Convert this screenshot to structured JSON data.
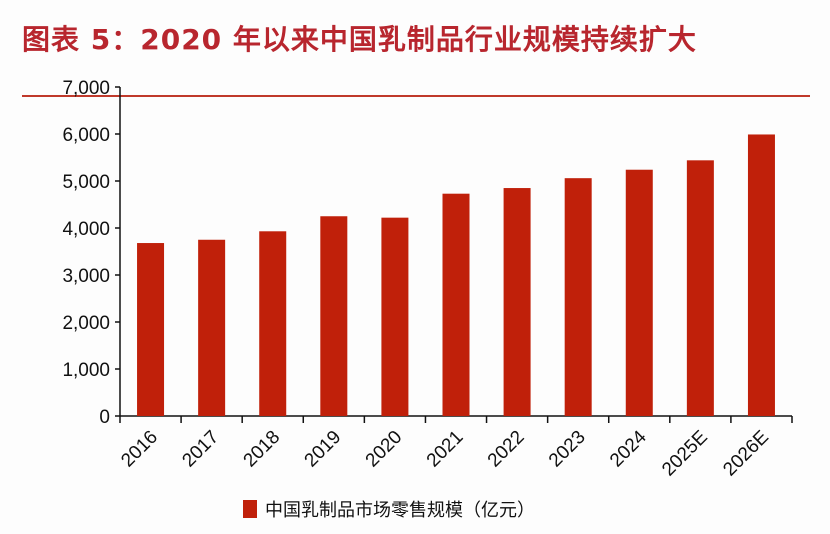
{
  "chart_data": {
    "type": "bar",
    "title": "图表 5：2020 年以来中国乳制品行业规模持续扩大",
    "categories": [
      "2016",
      "2017",
      "2018",
      "2019",
      "2020",
      "2021",
      "2022",
      "2023",
      "2024",
      "2025E",
      "2026E"
    ],
    "series": [
      {
        "name": "中国乳制品市场零售规模（亿元）",
        "values": [
          3680,
          3750,
          3930,
          4250,
          4220,
          4730,
          4850,
          5060,
          5240,
          5440,
          5990
        ],
        "color": "#c0200a"
      }
    ],
    "xlabel": "",
    "ylabel": "",
    "ylim": [
      0,
      7000
    ],
    "yticks": [
      "0",
      "1,000",
      "2,000",
      "3,000",
      "4,000",
      "5,000",
      "6,000",
      "7,000"
    ],
    "grid": false,
    "legend": "bottom"
  }
}
